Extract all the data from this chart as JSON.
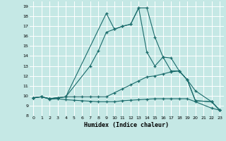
{
  "xlabel": "Humidex (Indice chaleur)",
  "bg_color": "#c5e8e5",
  "line_color": "#1a6b6b",
  "grid_color": "#ffffff",
  "xlim": [
    -0.5,
    23.5
  ],
  "ylim": [
    8,
    19.5
  ],
  "yticks": [
    8,
    9,
    10,
    11,
    12,
    13,
    14,
    15,
    16,
    17,
    18,
    19
  ],
  "xticks": [
    0,
    1,
    2,
    3,
    4,
    5,
    6,
    7,
    8,
    9,
    10,
    11,
    12,
    13,
    14,
    15,
    16,
    17,
    18,
    19,
    20,
    21,
    22,
    23
  ],
  "line1_x": [
    0,
    1,
    2,
    3,
    4,
    9,
    10,
    11,
    12,
    13,
    14,
    15,
    16,
    17,
    18,
    19,
    20,
    22,
    23
  ],
  "line1_y": [
    9.8,
    9.9,
    9.7,
    9.8,
    9.9,
    18.3,
    16.7,
    17.0,
    17.2,
    18.85,
    18.85,
    15.9,
    13.9,
    13.8,
    12.5,
    11.6,
    9.5,
    9.4,
    8.55
  ],
  "line2_x": [
    0,
    1,
    2,
    3,
    4,
    7,
    8,
    9,
    10,
    11,
    12,
    13,
    14,
    15,
    16,
    17,
    18,
    19,
    20,
    22,
    23
  ],
  "line2_y": [
    9.8,
    9.9,
    9.7,
    9.8,
    9.9,
    13.0,
    14.5,
    16.4,
    16.7,
    17.0,
    17.2,
    18.85,
    14.4,
    13.0,
    13.9,
    12.5,
    12.5,
    11.6,
    9.5,
    9.4,
    8.55
  ],
  "line3_x": [
    0,
    1,
    2,
    3,
    4,
    5,
    6,
    7,
    8,
    9,
    10,
    11,
    12,
    13,
    14,
    15,
    16,
    17,
    18,
    19,
    20,
    22,
    23
  ],
  "line3_y": [
    9.8,
    9.9,
    9.7,
    9.8,
    9.9,
    9.9,
    9.9,
    9.9,
    9.9,
    9.9,
    10.3,
    10.7,
    11.1,
    11.5,
    11.9,
    12.0,
    12.2,
    12.4,
    12.5,
    11.6,
    10.5,
    9.4,
    8.55
  ],
  "line4_x": [
    0,
    1,
    2,
    3,
    4,
    5,
    6,
    7,
    8,
    9,
    10,
    11,
    12,
    13,
    14,
    15,
    16,
    17,
    18,
    19,
    20,
    22,
    23
  ],
  "line4_y": [
    9.8,
    9.9,
    9.65,
    9.7,
    9.6,
    9.55,
    9.5,
    9.45,
    9.4,
    9.4,
    9.4,
    9.5,
    9.55,
    9.6,
    9.65,
    9.7,
    9.7,
    9.7,
    9.7,
    9.7,
    9.4,
    8.75,
    8.55
  ]
}
